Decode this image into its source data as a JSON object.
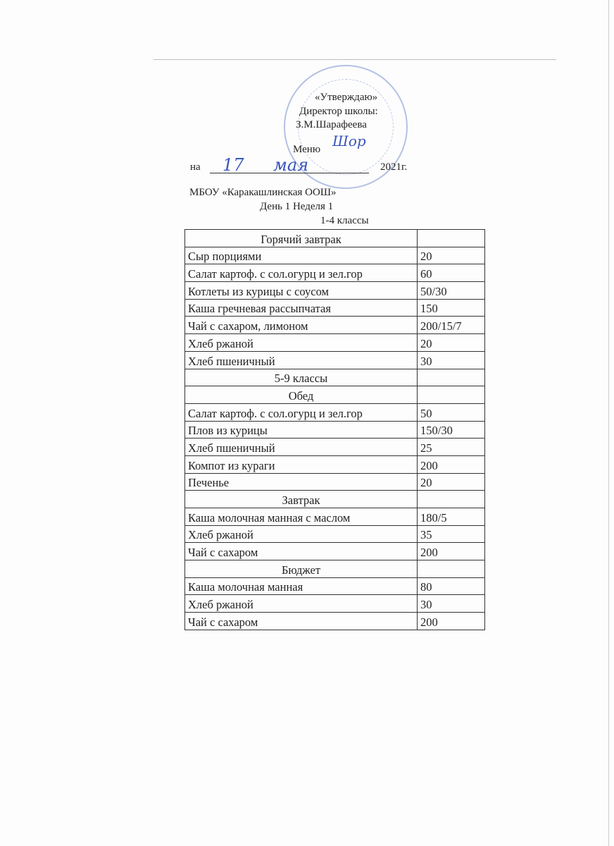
{
  "approval": {
    "title": "«Утверждаю»",
    "position": "Директор школы:",
    "name": "З.М.Шарафеева",
    "signature": "Шор"
  },
  "menu_title": "Меню",
  "date": {
    "prefix": "на",
    "day": "17",
    "month": "мая",
    "year": "2021г."
  },
  "school": "МБОУ «Каракашлинская ООШ»",
  "day_week": "День 1 Неделя  1",
  "group_label": "1-4 классы",
  "rows": [
    {
      "name": "Горячий завтрак",
      "value": "",
      "header": true
    },
    {
      "name": "Сыр порциями",
      "value": "20"
    },
    {
      "name": "Салат картоф. с сол.огурц и зел.гор",
      "value": "60"
    },
    {
      "name": "Котлеты из курицы с соусом",
      "value": "50/30"
    },
    {
      "name": "Каша гречневая рассыпчатая",
      "value": "150"
    },
    {
      "name": "Чай с сахаром,  лимоном",
      "value": "200/15/7"
    },
    {
      "name": "Хлеб ржаной",
      "value": "20"
    },
    {
      "name": "Хлеб пшеничный",
      "value": "30"
    },
    {
      "name": "5-9 классы",
      "value": "",
      "header": true
    },
    {
      "name": "Обед",
      "value": "",
      "header": true
    },
    {
      "name": "Салат картоф. с сол.огурц и зел.гор",
      "value": "50"
    },
    {
      "name": "Плов из курицы",
      "value": "150/30"
    },
    {
      "name": "Хлеб пшеничный",
      "value": "25"
    },
    {
      "name": "Компот из кураги",
      "value": "200"
    },
    {
      "name": "Печенье",
      "value": "20"
    },
    {
      "name": "Завтрак",
      "value": "",
      "header": true
    },
    {
      "name": "Каша молочная манная с маслом",
      "value": "180/5"
    },
    {
      "name": "Хлеб ржаной",
      "value": "35"
    },
    {
      "name": "Чай с сахаром",
      "value": "200"
    },
    {
      "name": "Бюджет",
      "value": "",
      "header": true
    },
    {
      "name": "Каша молочная манная",
      "value": "80"
    },
    {
      "name": "Хлеб ржаной",
      "value": "30"
    },
    {
      "name": "Чай с сахаром",
      "value": "200"
    }
  ]
}
